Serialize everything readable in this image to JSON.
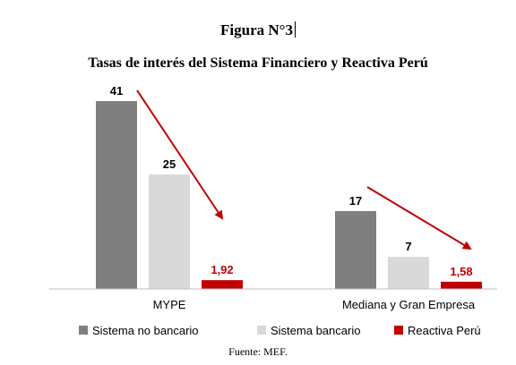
{
  "figure": {
    "number_label": "Figura N°3",
    "source": "Fuente: MEF."
  },
  "chart_data": {
    "type": "bar",
    "title": "Tasas de interés del Sistema Financiero y Reactiva Perú",
    "categories": [
      "MYPE",
      "Mediana y Gran Empresa"
    ],
    "series": [
      {
        "name": "Sistema no bancario",
        "values": [
          41,
          17
        ],
        "labels": [
          "41",
          "17"
        ],
        "color": "#7f7f7f",
        "label_color": "#000000"
      },
      {
        "name": "Sistema bancario",
        "values": [
          25,
          7
        ],
        "labels": [
          "25",
          "7"
        ],
        "color": "#d9d9d9",
        "label_color": "#000000"
      },
      {
        "name": "Reactiva Perú",
        "values": [
          1.92,
          1.58
        ],
        "labels": [
          "1,92",
          "1,58"
        ],
        "color": "#c00000",
        "label_color": "#c00000"
      }
    ],
    "ylim": [
      0,
      41
    ],
    "grid": false,
    "legend_position": "bottom",
    "arrow_color": "#c00000"
  }
}
